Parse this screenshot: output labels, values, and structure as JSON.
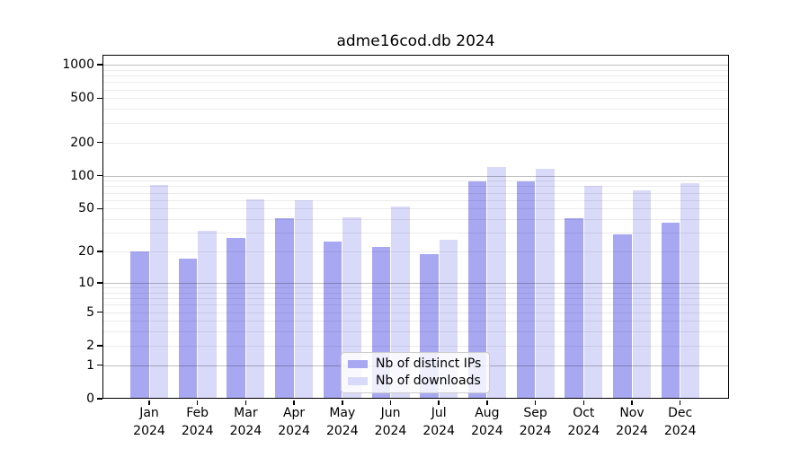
{
  "title": "adme16cod.db 2024",
  "legend": {
    "items": [
      {
        "label": "Nb of distinct IPs",
        "color": "#a8a8f2"
      },
      {
        "label": "Nb of downloads",
        "color": "#d9d9f9"
      }
    ]
  },
  "axes": {
    "ytick_labels": [
      "0",
      "1",
      "2",
      "5",
      "10",
      "20",
      "50",
      "100",
      "200",
      "500",
      "1000"
    ],
    "xtick_month_labels": [
      "Jan",
      "Feb",
      "Mar",
      "Apr",
      "May",
      "Jun",
      "Jul",
      "Aug",
      "Sep",
      "Oct",
      "Nov",
      "Dec"
    ],
    "xtick_year_label": "2024"
  },
  "chart_data": {
    "type": "bar",
    "title": "adme16cod.db 2024",
    "categories": [
      "Jan 2024",
      "Feb 2024",
      "Mar 2024",
      "Apr 2024",
      "May 2024",
      "Jun 2024",
      "Jul 2024",
      "Aug 2024",
      "Sep 2024",
      "Oct 2024",
      "Nov 2024",
      "Dec 2024"
    ],
    "series": [
      {
        "name": "Nb of distinct IPs",
        "color": "#a8a8f2",
        "values": [
          20,
          17,
          27,
          41,
          25,
          22,
          19,
          88,
          88,
          41,
          29,
          37
        ]
      },
      {
        "name": "Nb of downloads",
        "color": "#d9d9f9",
        "values": [
          82,
          31,
          61,
          60,
          42,
          52,
          26,
          120,
          115,
          80,
          73,
          85
        ]
      }
    ],
    "yscale": "log10(1+x)",
    "yticks": [
      0,
      1,
      2,
      5,
      10,
      20,
      50,
      100,
      200,
      500,
      1000
    ],
    "ylim": [
      0,
      1230
    ],
    "xlabel": "",
    "ylabel": "",
    "grid": "horizontal, major decades dark + minor 2-9 per decade light, drawn over bars",
    "legend_position": "lower center inside plot"
  },
  "colors": {
    "background": "#ffffff",
    "axis_frame": "#000000",
    "grid_major": "rgba(0,0,0,0.25)",
    "grid_minor": "rgba(0,0,0,0.08)",
    "text": "#000000"
  }
}
